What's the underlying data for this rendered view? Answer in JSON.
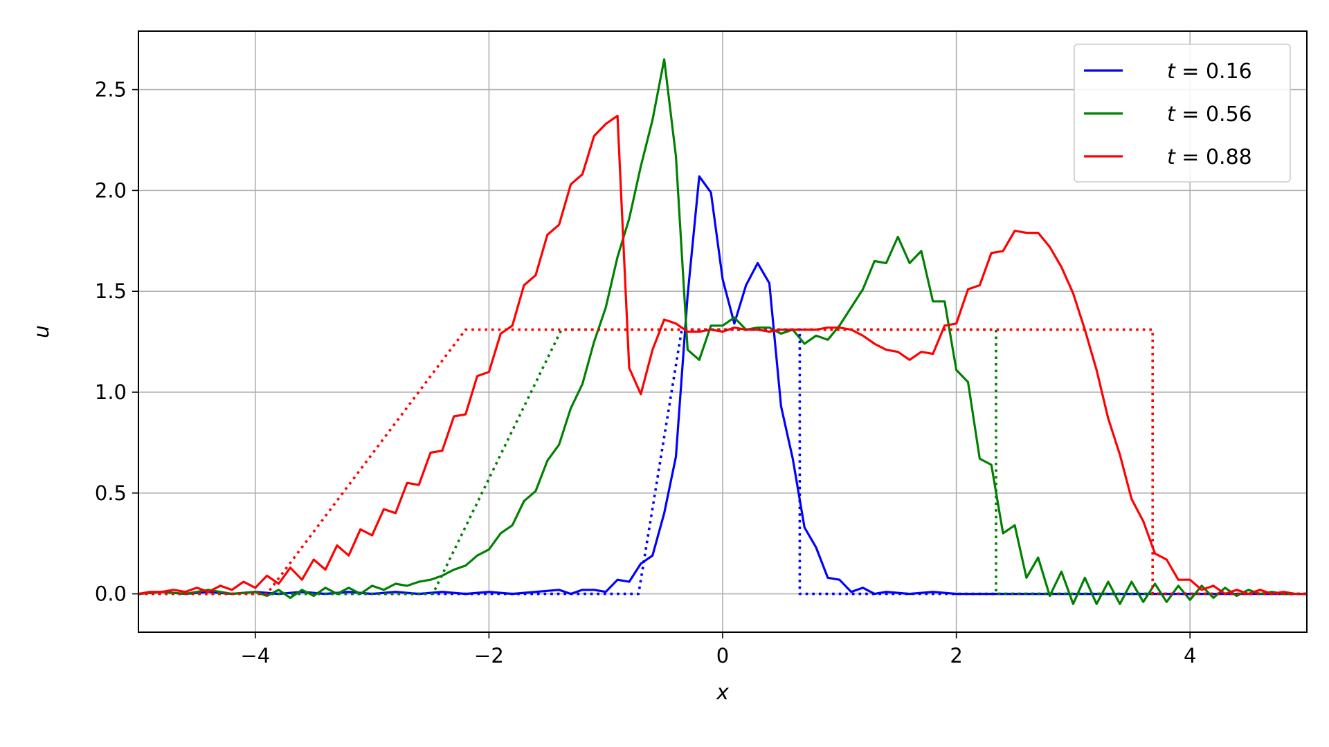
{
  "chart_data": {
    "type": "line",
    "xlabel": "x",
    "ylabel": "u",
    "xlim": [
      -5,
      5
    ],
    "ylim": [
      -0.19,
      2.79
    ],
    "x_ticks": [
      -4,
      -2,
      0,
      2,
      4
    ],
    "x_tick_labels": [
      "−4",
      "−2",
      "0",
      "2",
      "4"
    ],
    "y_ticks": [
      0.0,
      0.5,
      1.0,
      1.5,
      2.0,
      2.5
    ],
    "y_tick_labels": [
      "0.0",
      "0.5",
      "1.0",
      "1.5",
      "2.0",
      "2.5"
    ],
    "grid": true,
    "legend_position": "top-right",
    "legend": [
      {
        "prefix": "t",
        "text": " = 0.16",
        "color": "#0000ff"
      },
      {
        "prefix": "t",
        "text": " = 0.56",
        "color": "#008000"
      },
      {
        "prefix": "t",
        "text": " = 0.88",
        "color": "#ff0000"
      }
    ],
    "series": [
      {
        "name": "t = 0.16",
        "color": "#0000ff",
        "style": "solid",
        "points": [
          [
            -5,
            0
          ],
          [
            -4.8,
            0.01
          ],
          [
            -4.6,
            0
          ],
          [
            -4.4,
            0.01
          ],
          [
            -4.2,
            0
          ],
          [
            -4,
            0.01
          ],
          [
            -3.8,
            0
          ],
          [
            -3.6,
            0.01
          ],
          [
            -3.4,
            0
          ],
          [
            -3.2,
            0.01
          ],
          [
            -3,
            0
          ],
          [
            -2.8,
            0.01
          ],
          [
            -2.6,
            0
          ],
          [
            -2.4,
            0.01
          ],
          [
            -2.2,
            0
          ],
          [
            -2,
            0.01
          ],
          [
            -1.8,
            0
          ],
          [
            -1.6,
            0.01
          ],
          [
            -1.4,
            0.02
          ],
          [
            -1.3,
            0
          ],
          [
            -1.2,
            0.02
          ],
          [
            -1.1,
            0.02
          ],
          [
            -1.0,
            0.01
          ],
          [
            -0.9,
            0.07
          ],
          [
            -0.8,
            0.06
          ],
          [
            -0.7,
            0.15
          ],
          [
            -0.6,
            0.19
          ],
          [
            -0.5,
            0.4
          ],
          [
            -0.4,
            0.68
          ],
          [
            -0.3,
            1.48
          ],
          [
            -0.2,
            2.07
          ],
          [
            -0.1,
            1.99
          ],
          [
            0,
            1.56
          ],
          [
            0.1,
            1.34
          ],
          [
            0.2,
            1.53
          ],
          [
            0.3,
            1.64
          ],
          [
            0.4,
            1.54
          ],
          [
            0.5,
            0.93
          ],
          [
            0.6,
            0.67
          ],
          [
            0.7,
            0.33
          ],
          [
            0.8,
            0.23
          ],
          [
            0.9,
            0.08
          ],
          [
            1.0,
            0.07
          ],
          [
            1.1,
            0.01
          ],
          [
            1.2,
            0.03
          ],
          [
            1.3,
            0
          ],
          [
            1.4,
            0.01
          ],
          [
            1.6,
            0
          ],
          [
            1.8,
            0.01
          ],
          [
            2,
            0
          ],
          [
            2.5,
            0
          ],
          [
            3,
            0
          ],
          [
            3.5,
            0
          ],
          [
            4,
            0
          ],
          [
            4.5,
            0
          ],
          [
            5,
            0
          ]
        ]
      },
      {
        "name": "t = 0.56",
        "color": "#008000",
        "style": "solid",
        "points": [
          [
            -5,
            0
          ],
          [
            -4.8,
            0.01
          ],
          [
            -4.6,
            0
          ],
          [
            -4.4,
            0.02
          ],
          [
            -4.2,
            0
          ],
          [
            -4,
            0.01
          ],
          [
            -3.9,
            -0.01
          ],
          [
            -3.8,
            0.02
          ],
          [
            -3.7,
            -0.02
          ],
          [
            -3.6,
            0.02
          ],
          [
            -3.5,
            -0.01
          ],
          [
            -3.4,
            0.03
          ],
          [
            -3.3,
            0
          ],
          [
            -3.2,
            0.03
          ],
          [
            -3.1,
            0
          ],
          [
            -3.0,
            0.04
          ],
          [
            -2.9,
            0.02
          ],
          [
            -2.8,
            0.05
          ],
          [
            -2.7,
            0.04
          ],
          [
            -2.6,
            0.06
          ],
          [
            -2.5,
            0.07
          ],
          [
            -2.4,
            0.09
          ],
          [
            -2.3,
            0.12
          ],
          [
            -2.2,
            0.14
          ],
          [
            -2.1,
            0.19
          ],
          [
            -2.0,
            0.22
          ],
          [
            -1.9,
            0.3
          ],
          [
            -1.8,
            0.34
          ],
          [
            -1.7,
            0.46
          ],
          [
            -1.6,
            0.51
          ],
          [
            -1.5,
            0.66
          ],
          [
            -1.4,
            0.74
          ],
          [
            -1.3,
            0.92
          ],
          [
            -1.2,
            1.04
          ],
          [
            -1.1,
            1.25
          ],
          [
            -1.0,
            1.42
          ],
          [
            -0.9,
            1.67
          ],
          [
            -0.8,
            1.86
          ],
          [
            -0.7,
            2.12
          ],
          [
            -0.6,
            2.35
          ],
          [
            -0.5,
            2.65
          ],
          [
            -0.4,
            2.17
          ],
          [
            -0.3,
            1.21
          ],
          [
            -0.2,
            1.16
          ],
          [
            -0.1,
            1.33
          ],
          [
            0,
            1.33
          ],
          [
            0.1,
            1.37
          ],
          [
            0.2,
            1.31
          ],
          [
            0.3,
            1.32
          ],
          [
            0.4,
            1.32
          ],
          [
            0.5,
            1.29
          ],
          [
            0.6,
            1.31
          ],
          [
            0.7,
            1.24
          ],
          [
            0.8,
            1.28
          ],
          [
            0.9,
            1.26
          ],
          [
            1.0,
            1.33
          ],
          [
            1.1,
            1.42
          ],
          [
            1.2,
            1.51
          ],
          [
            1.3,
            1.65
          ],
          [
            1.4,
            1.64
          ],
          [
            1.5,
            1.77
          ],
          [
            1.6,
            1.64
          ],
          [
            1.7,
            1.7
          ],
          [
            1.8,
            1.45
          ],
          [
            1.9,
            1.45
          ],
          [
            2.0,
            1.11
          ],
          [
            2.1,
            1.05
          ],
          [
            2.2,
            0.67
          ],
          [
            2.3,
            0.64
          ],
          [
            2.4,
            0.3
          ],
          [
            2.5,
            0.34
          ],
          [
            2.6,
            0.08
          ],
          [
            2.7,
            0.18
          ],
          [
            2.8,
            -0.01
          ],
          [
            2.9,
            0.11
          ],
          [
            3.0,
            -0.05
          ],
          [
            3.1,
            0.08
          ],
          [
            3.2,
            -0.05
          ],
          [
            3.3,
            0.06
          ],
          [
            3.4,
            -0.05
          ],
          [
            3.5,
            0.06
          ],
          [
            3.6,
            -0.04
          ],
          [
            3.7,
            0.05
          ],
          [
            3.8,
            -0.04
          ],
          [
            3.9,
            0.04
          ],
          [
            4.0,
            -0.03
          ],
          [
            4.1,
            0.04
          ],
          [
            4.2,
            -0.02
          ],
          [
            4.3,
            0.03
          ],
          [
            4.4,
            -0.01
          ],
          [
            4.5,
            0.02
          ],
          [
            4.6,
            0
          ],
          [
            4.7,
            0.01
          ],
          [
            4.8,
            0
          ],
          [
            5,
            0
          ]
        ]
      },
      {
        "name": "t = 0.88",
        "color": "#ff0000",
        "style": "solid",
        "points": [
          [
            -5,
            0
          ],
          [
            -4.9,
            0.01
          ],
          [
            -4.8,
            0.01
          ],
          [
            -4.7,
            0.02
          ],
          [
            -4.6,
            0.01
          ],
          [
            -4.5,
            0.03
          ],
          [
            -4.4,
            0.01
          ],
          [
            -4.3,
            0.04
          ],
          [
            -4.2,
            0.02
          ],
          [
            -4.1,
            0.06
          ],
          [
            -4.0,
            0.03
          ],
          [
            -3.9,
            0.09
          ],
          [
            -3.8,
            0.05
          ],
          [
            -3.7,
            0.13
          ],
          [
            -3.6,
            0.07
          ],
          [
            -3.5,
            0.17
          ],
          [
            -3.4,
            0.12
          ],
          [
            -3.3,
            0.24
          ],
          [
            -3.2,
            0.19
          ],
          [
            -3.1,
            0.32
          ],
          [
            -3.0,
            0.29
          ],
          [
            -2.9,
            0.42
          ],
          [
            -2.8,
            0.4
          ],
          [
            -2.7,
            0.55
          ],
          [
            -2.6,
            0.54
          ],
          [
            -2.5,
            0.7
          ],
          [
            -2.4,
            0.71
          ],
          [
            -2.3,
            0.88
          ],
          [
            -2.2,
            0.89
          ],
          [
            -2.1,
            1.08
          ],
          [
            -2.0,
            1.1
          ],
          [
            -1.9,
            1.29
          ],
          [
            -1.8,
            1.33
          ],
          [
            -1.7,
            1.53
          ],
          [
            -1.6,
            1.58
          ],
          [
            -1.5,
            1.78
          ],
          [
            -1.4,
            1.83
          ],
          [
            -1.3,
            2.03
          ],
          [
            -1.2,
            2.08
          ],
          [
            -1.1,
            2.27
          ],
          [
            -1.0,
            2.33
          ],
          [
            -0.9,
            2.37
          ],
          [
            -0.8,
            1.12
          ],
          [
            -0.7,
            0.99
          ],
          [
            -0.6,
            1.21
          ],
          [
            -0.5,
            1.36
          ],
          [
            -0.4,
            1.34
          ],
          [
            -0.3,
            1.3
          ],
          [
            -0.2,
            1.3
          ],
          [
            -0.1,
            1.31
          ],
          [
            0,
            1.3
          ],
          [
            0.1,
            1.32
          ],
          [
            0.2,
            1.31
          ],
          [
            0.3,
            1.31
          ],
          [
            0.4,
            1.3
          ],
          [
            0.5,
            1.31
          ],
          [
            0.6,
            1.31
          ],
          [
            0.7,
            1.31
          ],
          [
            0.8,
            1.31
          ],
          [
            0.9,
            1.32
          ],
          [
            1.0,
            1.32
          ],
          [
            1.1,
            1.31
          ],
          [
            1.2,
            1.28
          ],
          [
            1.3,
            1.24
          ],
          [
            1.4,
            1.21
          ],
          [
            1.5,
            1.2
          ],
          [
            1.6,
            1.16
          ],
          [
            1.7,
            1.2
          ],
          [
            1.8,
            1.19
          ],
          [
            1.9,
            1.33
          ],
          [
            2.0,
            1.34
          ],
          [
            2.1,
            1.51
          ],
          [
            2.2,
            1.53
          ],
          [
            2.3,
            1.69
          ],
          [
            2.4,
            1.7
          ],
          [
            2.5,
            1.8
          ],
          [
            2.6,
            1.79
          ],
          [
            2.7,
            1.79
          ],
          [
            2.8,
            1.72
          ],
          [
            2.9,
            1.62
          ],
          [
            3.0,
            1.49
          ],
          [
            3.1,
            1.31
          ],
          [
            3.2,
            1.11
          ],
          [
            3.3,
            0.87
          ],
          [
            3.4,
            0.69
          ],
          [
            3.5,
            0.47
          ],
          [
            3.6,
            0.36
          ],
          [
            3.7,
            0.2
          ],
          [
            3.8,
            0.17
          ],
          [
            3.9,
            0.07
          ],
          [
            4.0,
            0.07
          ],
          [
            4.1,
            0.02
          ],
          [
            4.2,
            0.04
          ],
          [
            4.3,
            0
          ],
          [
            4.4,
            0.02
          ],
          [
            4.5,
            0
          ],
          [
            4.6,
            0.02
          ],
          [
            4.7,
            0
          ],
          [
            4.8,
            0.01
          ],
          [
            4.9,
            0
          ],
          [
            5,
            0
          ]
        ]
      },
      {
        "name": "",
        "color": "#0000ff",
        "style": "dotted",
        "points": [
          [
            -5,
            0
          ],
          [
            -0.72,
            0
          ],
          [
            -0.35,
            1.31
          ],
          [
            0.66,
            1.31
          ],
          [
            0.66,
            0
          ],
          [
            5,
            0
          ]
        ]
      },
      {
        "name": "",
        "color": "#008000",
        "style": "dotted",
        "points": [
          [
            -5,
            0
          ],
          [
            -2.48,
            0
          ],
          [
            -1.38,
            1.31
          ],
          [
            2.34,
            1.31
          ],
          [
            2.34,
            0
          ],
          [
            5,
            0
          ]
        ]
      },
      {
        "name": "",
        "color": "#ff0000",
        "style": "dotted",
        "points": [
          [
            -5,
            0
          ],
          [
            -3.9,
            0
          ],
          [
            -2.2,
            1.31
          ],
          [
            3.68,
            1.31
          ],
          [
            3.68,
            0
          ],
          [
            5,
            0
          ]
        ]
      }
    ]
  }
}
